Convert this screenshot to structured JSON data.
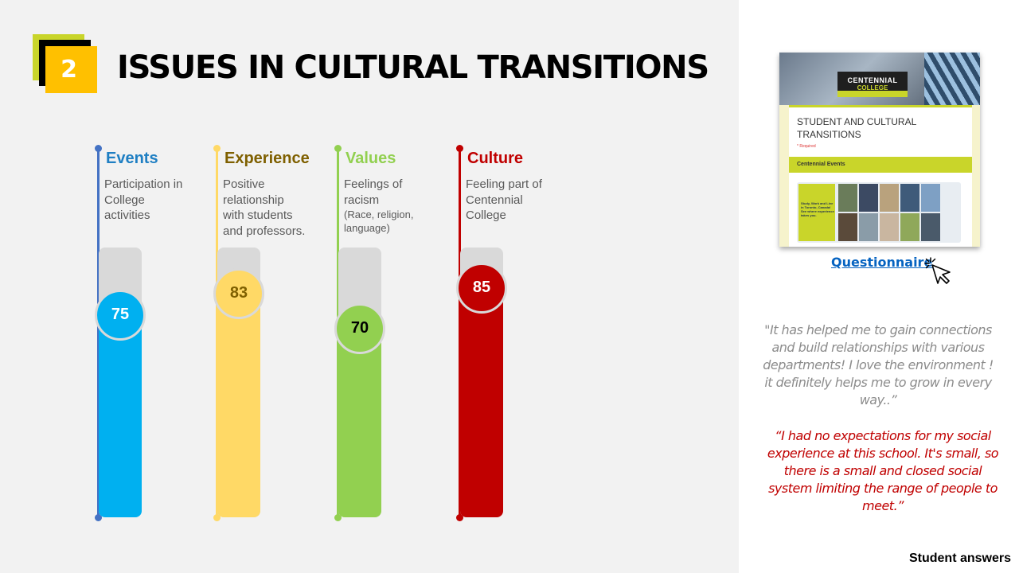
{
  "slide": {
    "number": "2",
    "title": "ISSUES IN CULTURAL TRANSITIONS"
  },
  "columns": [
    {
      "title": "Events",
      "desc_lines": [
        "Participation in",
        "College",
        "activities"
      ],
      "desc_small": "",
      "value": 75,
      "color": "#4472c4",
      "title_color": "#1f7fc3",
      "fill": "#00b0f0",
      "value_color": "#ffffff"
    },
    {
      "title": "Experience",
      "desc_lines": [
        "Positive",
        "relationship",
        "with students",
        "and professors."
      ],
      "desc_small": "",
      "value": 83,
      "color": "#ffd966",
      "title_color": "#7f6000",
      "fill": "#ffd966",
      "value_color": "#7f6000"
    },
    {
      "title": "Values",
      "desc_lines": [
        "Feelings of",
        "racism"
      ],
      "desc_small": "(Race, religion, language)",
      "value": 70,
      "color": "#92d050",
      "title_color": "#92d050",
      "fill": "#92d050",
      "value_color": "#000000"
    },
    {
      "title": "Culture",
      "desc_lines": [
        "Feeling part of",
        "Centennial",
        "College"
      ],
      "desc_small": "",
      "value": 85,
      "color": "#c00000",
      "title_color": "#c00000",
      "fill": "#c00000",
      "value_color": "#ffffff"
    }
  ],
  "thumbnail": {
    "sign_line1": "CENTENNIAL",
    "sign_line2": "COLLEGE",
    "form_title": "STUDENT AND CULTURAL TRANSITIONS",
    "required": "* Required",
    "section": "Centennial Events",
    "promo_text": "Study, Work and Live in Toronto, Canada! See where experience takes you."
  },
  "questionnaire_link": "Questionnaire",
  "quotes": [
    "\"It has helped me to gain connections and build relationships with various departments! I love the environment ! it definitely helps me to grow in every way..”",
    "“I had no expectations for my social experience at this school. It's small, so there is a small and closed social system limiting the range of people to meet.”"
  ],
  "footer": "Student answers",
  "colors": {
    "accent_yellow": "#ffc000",
    "accent_green": "#c9d52a",
    "link": "#0563c1"
  }
}
